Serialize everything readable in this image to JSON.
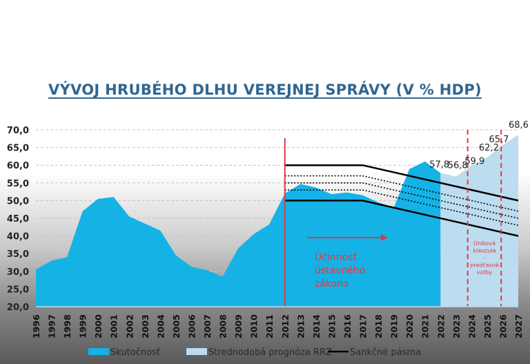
{
  "chart_data": {
    "type": "area",
    "title": "VÝVOJ HRUBÉHO DLHU VEREJNEJ SPRÁVY (V % HDP)",
    "xlabel": "",
    "ylabel": "",
    "ylim": [
      20,
      70
    ],
    "yticks": [
      "20,0",
      "25,0",
      "30,0",
      "35,0",
      "40,0",
      "45,0",
      "50,0",
      "55,0",
      "60,0",
      "65,0",
      "70,0"
    ],
    "grid": true,
    "legend_position": "bottom",
    "x": [
      1996,
      1997,
      1998,
      1999,
      2000,
      2001,
      2002,
      2003,
      2004,
      2005,
      2006,
      2007,
      2008,
      2009,
      2010,
      2011,
      2012,
      2013,
      2014,
      2015,
      2016,
      2017,
      2018,
      2019,
      2020,
      2021,
      2022,
      2023,
      2024,
      2025,
      2026,
      2027
    ],
    "series": [
      {
        "name": "Skutočnosť",
        "color": "#15b2e6",
        "x": [
          1996,
          1997,
          1998,
          1999,
          2000,
          2001,
          2002,
          2003,
          2004,
          2005,
          2006,
          2007,
          2008,
          2009,
          2010,
          2011,
          2012,
          2013,
          2014,
          2015,
          2016,
          2017,
          2018,
          2019,
          2020,
          2021,
          2022
        ],
        "values": [
          30.5,
          33.0,
          34.0,
          47.0,
          50.5,
          51.0,
          45.5,
          43.5,
          41.5,
          34.5,
          31.3,
          30.3,
          28.5,
          36.5,
          40.5,
          43.3,
          52.0,
          54.7,
          53.7,
          51.8,
          52.3,
          51.5,
          49.5,
          48.0,
          58.9,
          61.1,
          57.8
        ]
      },
      {
        "name": "Strednodobá prognóza RRZ",
        "color": "#bcdcef",
        "x": [
          2022,
          2023,
          2024,
          2025,
          2026,
          2027
        ],
        "values": [
          57.8,
          56.8,
          59.9,
          62.2,
          65.7,
          68.6
        ]
      },
      {
        "name": "Sankčné pásma",
        "color": "#000000",
        "bands": [
          {
            "style": "solid",
            "x": [
              2012,
              2017,
              2027
            ],
            "values": [
              60,
              60,
              50
            ]
          },
          {
            "style": "dotted",
            "x": [
              2012,
              2017,
              2027
            ],
            "values": [
              57,
              57,
              47
            ]
          },
          {
            "style": "dotted",
            "x": [
              2012,
              2017,
              2027
            ],
            "values": [
              55,
              55,
              45
            ]
          },
          {
            "style": "dotted",
            "x": [
              2012,
              2017,
              2027
            ],
            "values": [
              53,
              53,
              43
            ]
          },
          {
            "style": "solid",
            "x": [
              2012,
              2017,
              2027
            ],
            "values": [
              50,
              50,
              40
            ]
          }
        ]
      }
    ],
    "data_labels": [
      {
        "x": 2022,
        "value": 57.8,
        "text": "57,8"
      },
      {
        "x": 2023,
        "value": 56.8,
        "text": "56,8"
      },
      {
        "x": 2024,
        "value": 59.9,
        "text": "59,9"
      },
      {
        "x": 2025,
        "value": 62.2,
        "text": "62,2"
      },
      {
        "x": 2026,
        "value": 65.7,
        "text": "65,7"
      },
      {
        "x": 2027,
        "value": 68.6,
        "text": "68,6"
      }
    ],
    "annotations": {
      "law_line_year": 2012,
      "law_text": [
        "Účinnosť",
        "ústavného",
        "zákona"
      ],
      "escape_lines_years": [
        2023.75,
        2025.9
      ],
      "escape_text": [
        "Úniková",
        "klauzula",
        "-",
        "predčasné",
        "voľby"
      ],
      "accent_color": "#e0393e"
    }
  }
}
